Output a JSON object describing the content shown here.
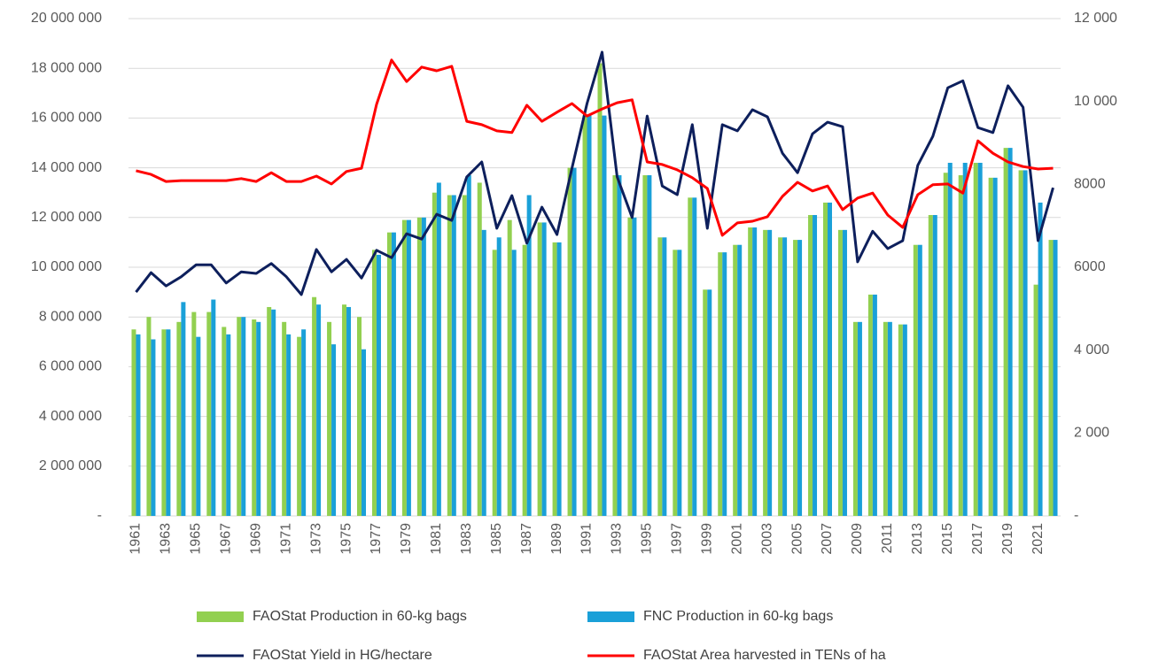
{
  "chart_data": {
    "type": "bar",
    "categories": [
      "1961",
      null,
      "1963",
      null,
      "1965",
      null,
      "1967",
      null,
      "1969",
      null,
      "1971",
      null,
      "1973",
      null,
      "1975",
      null,
      "1977",
      null,
      "1979",
      null,
      "1981",
      null,
      "1983",
      null,
      "1985",
      null,
      "1987",
      null,
      "1989",
      null,
      "1991",
      null,
      "1993",
      null,
      "1995",
      null,
      "1997",
      null,
      "1999",
      null,
      "2001",
      null,
      "2003",
      null,
      "2005",
      null,
      "2007",
      null,
      "2009",
      null,
      "2011",
      null,
      "2013",
      null,
      "2015",
      null,
      "2017",
      null,
      "2019",
      null,
      "2021",
      null
    ],
    "series": [
      {
        "name": "FAOStat Production in 60-kg bags",
        "color": "#92d050",
        "type": "bar",
        "values": [
          7500000,
          8000000,
          7500000,
          7800000,
          8200000,
          8200000,
          7600000,
          8000000,
          7900000,
          8400000,
          7800000,
          7200000,
          8800000,
          7800000,
          8500000,
          8000000,
          10700000,
          11400000,
          11900000,
          12000000,
          13000000,
          12900000,
          12900000,
          13400000,
          10700000,
          11900000,
          10900000,
          11800000,
          11000000,
          14000000,
          16100000,
          18200000,
          13700000,
          12000000,
          13700000,
          11200000,
          10700000,
          12800000,
          9100000,
          10600000,
          10900000,
          11600000,
          11500000,
          11200000,
          11100000,
          12100000,
          12600000,
          11500000,
          7800000,
          8900000,
          7800000,
          7700000,
          10900000,
          12100000,
          13800000,
          13700000,
          14200000,
          13600000,
          14800000,
          13900000,
          9300000,
          11100000
        ]
      },
      {
        "name": "FNC Production in 60-kg bags",
        "color": "#1aa0d8",
        "type": "bar",
        "values": [
          7300000,
          7100000,
          7500000,
          8600000,
          7200000,
          8700000,
          7300000,
          8000000,
          7800000,
          8300000,
          7300000,
          7500000,
          8500000,
          6900000,
          8400000,
          6700000,
          10500000,
          11400000,
          11900000,
          12000000,
          13400000,
          12900000,
          13700000,
          11500000,
          11200000,
          10700000,
          12900000,
          11800000,
          11000000,
          14000000,
          16100000,
          16100000,
          13700000,
          12000000,
          13700000,
          11200000,
          10700000,
          12800000,
          9100000,
          10600000,
          10900000,
          11600000,
          11500000,
          11200000,
          11100000,
          12100000,
          12600000,
          11500000,
          7800000,
          8900000,
          7800000,
          7700000,
          10900000,
          12100000,
          14200000,
          14200000,
          14200000,
          13600000,
          14800000,
          13900000,
          12600000,
          11100000
        ]
      },
      {
        "name": "FAOStat Yield in HG/hectare",
        "color": "#0d1f5c",
        "type": "line",
        "axis": "y2",
        "values": [
          5400,
          5870,
          5550,
          5770,
          6060,
          6060,
          5620,
          5890,
          5850,
          6090,
          5770,
          5340,
          6430,
          5890,
          6190,
          5740,
          6410,
          6230,
          6810,
          6680,
          7280,
          7130,
          8180,
          8540,
          6940,
          7730,
          6580,
          7450,
          6790,
          8390,
          9950,
          11190,
          8180,
          7200,
          9650,
          7960,
          7750,
          9440,
          6940,
          9440,
          9290,
          9800,
          9630,
          8750,
          8280,
          9220,
          9500,
          9390,
          6130,
          6870,
          6450,
          6640,
          8460,
          9160,
          10330,
          10500,
          9370,
          9250,
          10380,
          9860,
          6640,
          7920
        ]
      },
      {
        "name": "FAOStat Area harvested in TENs of ha",
        "color": "#ff0000",
        "type": "line",
        "axis": "y2",
        "values": [
          8330,
          8240,
          8070,
          8090,
          8090,
          8090,
          8090,
          8140,
          8070,
          8280,
          8070,
          8070,
          8200,
          8010,
          8310,
          8390,
          9930,
          11000,
          10480,
          10830,
          10740,
          10850,
          9520,
          9440,
          9290,
          9250,
          9910,
          9520,
          9740,
          9950,
          9650,
          9820,
          9970,
          10040,
          8540,
          8480,
          8350,
          8160,
          7900,
          6770,
          7070,
          7110,
          7220,
          7710,
          8050,
          7840,
          7960,
          7390,
          7670,
          7790,
          7260,
          6960,
          7750,
          7990,
          8010,
          7790,
          9050,
          8750,
          8540,
          8430,
          8370,
          8390
        ]
      }
    ],
    "ylim": [
      0,
      20000000
    ],
    "yticks": [
      {
        "value": 0,
        "label": "-"
      },
      {
        "value": 2000000,
        "label": "2 000 000"
      },
      {
        "value": 4000000,
        "label": "4 000 000"
      },
      {
        "value": 6000000,
        "label": "6 000 000"
      },
      {
        "value": 8000000,
        "label": "8 000 000"
      },
      {
        "value": 10000000,
        "label": "10 000 000"
      },
      {
        "value": 12000000,
        "label": "12 000 000"
      },
      {
        "value": 14000000,
        "label": "14 000 000"
      },
      {
        "value": 16000000,
        "label": "16 000 000"
      },
      {
        "value": 18000000,
        "label": "18 000 000"
      },
      {
        "value": 20000000,
        "label": "20 000 000"
      }
    ],
    "y2lim": [
      0,
      12000
    ],
    "y2ticks": [
      {
        "value": 0,
        "label": "-"
      },
      {
        "value": 2000,
        "label": "2 000"
      },
      {
        "value": 4000,
        "label": "4 000"
      },
      {
        "value": 6000,
        "label": "6000"
      },
      {
        "value": 8000,
        "label": "8000"
      },
      {
        "value": 10000,
        "label": "10 000"
      },
      {
        "value": 12000,
        "label": "12 000"
      }
    ],
    "grid": true
  }
}
